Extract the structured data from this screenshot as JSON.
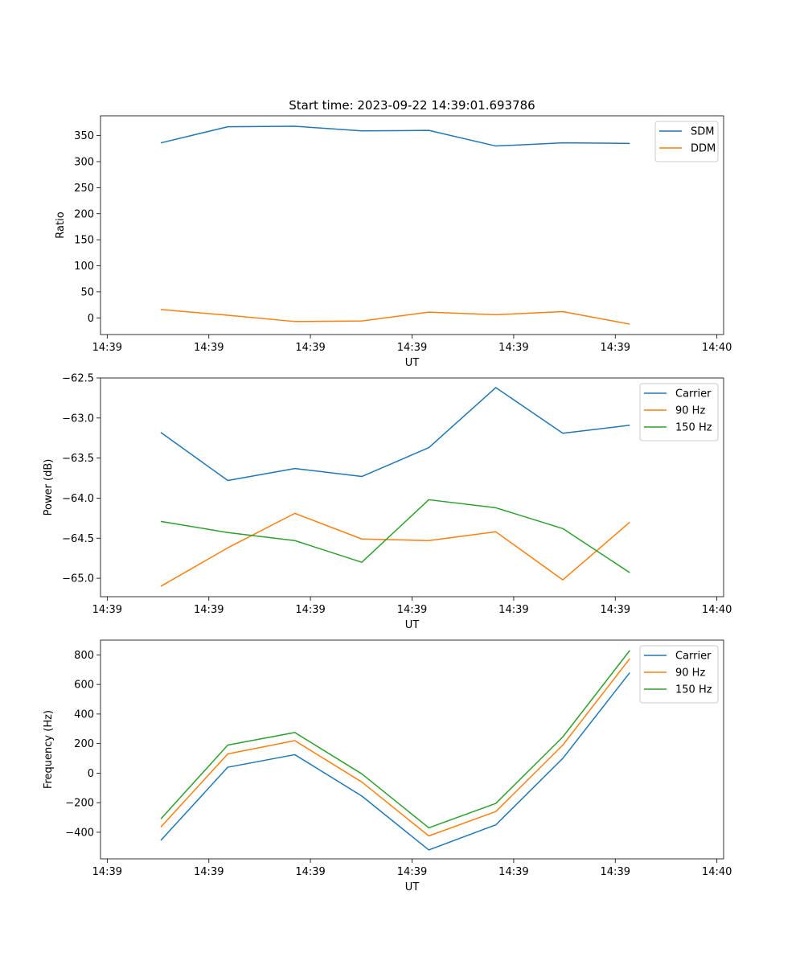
{
  "title": "Start time: 2023-09-22 14:39:01.693786",
  "chart_data": [
    {
      "type": "line",
      "xlabel": "UT",
      "ylabel": "Ratio",
      "xlim": [
        -0.9,
        8.4
      ],
      "ylim": [
        -32,
        388
      ],
      "x": [
        0,
        1,
        2,
        3,
        4,
        5,
        6,
        7
      ],
      "x_ticks": [
        {
          "value": -0.8,
          "label": "14:39"
        },
        {
          "value": 0.717,
          "label": "14:39"
        },
        {
          "value": 2.233,
          "label": "14:39"
        },
        {
          "value": 3.75,
          "label": "14:39"
        },
        {
          "value": 5.267,
          "label": "14:39"
        },
        {
          "value": 6.783,
          "label": "14:39"
        },
        {
          "value": 8.3,
          "label": "14:40"
        }
      ],
      "y_ticks": [
        {
          "value": 0,
          "label": "0"
        },
        {
          "value": 50,
          "label": "50"
        },
        {
          "value": 100,
          "label": "100"
        },
        {
          "value": 150,
          "label": "150"
        },
        {
          "value": 200,
          "label": "200"
        },
        {
          "value": 250,
          "label": "250"
        },
        {
          "value": 300,
          "label": "300"
        },
        {
          "value": 350,
          "label": "350"
        }
      ],
      "legend_position": "upper-right",
      "series": [
        {
          "name": "SDM",
          "color": "#1f77b4",
          "values": [
            336,
            367,
            368,
            359,
            360,
            330,
            336,
            335
          ]
        },
        {
          "name": "DDM",
          "color": "#ff7f0e",
          "values": [
            16,
            5,
            -7,
            -6,
            11,
            6,
            12,
            -12
          ]
        }
      ]
    },
    {
      "type": "line",
      "xlabel": "UT",
      "ylabel": "Power (dB)",
      "xlim": [
        -0.9,
        8.4
      ],
      "ylim": [
        -65.23,
        -62.5
      ],
      "x": [
        0,
        1,
        2,
        3,
        4,
        5,
        6,
        7
      ],
      "x_ticks": [
        {
          "value": -0.8,
          "label": "14:39"
        },
        {
          "value": 0.717,
          "label": "14:39"
        },
        {
          "value": 2.233,
          "label": "14:39"
        },
        {
          "value": 3.75,
          "label": "14:39"
        },
        {
          "value": 5.267,
          "label": "14:39"
        },
        {
          "value": 6.783,
          "label": "14:39"
        },
        {
          "value": 8.3,
          "label": "14:40"
        }
      ],
      "y_ticks": [
        {
          "value": -65.0,
          "label": "−65.0"
        },
        {
          "value": -64.5,
          "label": "−64.5"
        },
        {
          "value": -64.0,
          "label": "−64.0"
        },
        {
          "value": -63.5,
          "label": "−63.5"
        },
        {
          "value": -63.0,
          "label": "−63.0"
        },
        {
          "value": -62.5,
          "label": "−62.5"
        }
      ],
      "legend_position": "upper-right",
      "series": [
        {
          "name": "Carrier",
          "color": "#1f77b4",
          "values": [
            -63.18,
            -63.78,
            -63.63,
            -63.73,
            -63.37,
            -62.62,
            -63.19,
            -63.09
          ]
        },
        {
          "name": "90 Hz",
          "color": "#ff7f0e",
          "values": [
            -65.1,
            -64.62,
            -64.19,
            -64.51,
            -64.53,
            -64.42,
            -65.02,
            -64.3
          ]
        },
        {
          "name": "150 Hz",
          "color": "#2ca02c",
          "values": [
            -64.29,
            -64.43,
            -64.53,
            -64.8,
            -64.02,
            -64.12,
            -64.38,
            -64.93
          ]
        }
      ]
    },
    {
      "type": "line",
      "xlabel": "UT",
      "ylabel": "Frequency (Hz)",
      "xlim": [
        -0.9,
        8.4
      ],
      "ylim": [
        -580,
        900
      ],
      "x": [
        0,
        1,
        2,
        3,
        4,
        5,
        6,
        7
      ],
      "x_ticks": [
        {
          "value": -0.8,
          "label": "14:39"
        },
        {
          "value": 0.717,
          "label": "14:39"
        },
        {
          "value": 2.233,
          "label": "14:39"
        },
        {
          "value": 3.75,
          "label": "14:39"
        },
        {
          "value": 5.267,
          "label": "14:39"
        },
        {
          "value": 6.783,
          "label": "14:39"
        },
        {
          "value": 8.3,
          "label": "14:40"
        }
      ],
      "y_ticks": [
        {
          "value": -400,
          "label": "−400"
        },
        {
          "value": -200,
          "label": "−200"
        },
        {
          "value": 0,
          "label": "0"
        },
        {
          "value": 200,
          "label": "200"
        },
        {
          "value": 400,
          "label": "400"
        },
        {
          "value": 600,
          "label": "600"
        },
        {
          "value": 800,
          "label": "800"
        }
      ],
      "legend_position": "upper-right",
      "series": [
        {
          "name": "Carrier",
          "color": "#1f77b4",
          "values": [
            -455,
            40,
            125,
            -155,
            -520,
            -350,
            100,
            680
          ]
        },
        {
          "name": "90 Hz",
          "color": "#ff7f0e",
          "values": [
            -365,
            130,
            220,
            -60,
            -425,
            -260,
            190,
            775
          ]
        },
        {
          "name": "150 Hz",
          "color": "#2ca02c",
          "values": [
            -310,
            190,
            275,
            -5,
            -370,
            -205,
            245,
            830
          ]
        }
      ]
    }
  ]
}
